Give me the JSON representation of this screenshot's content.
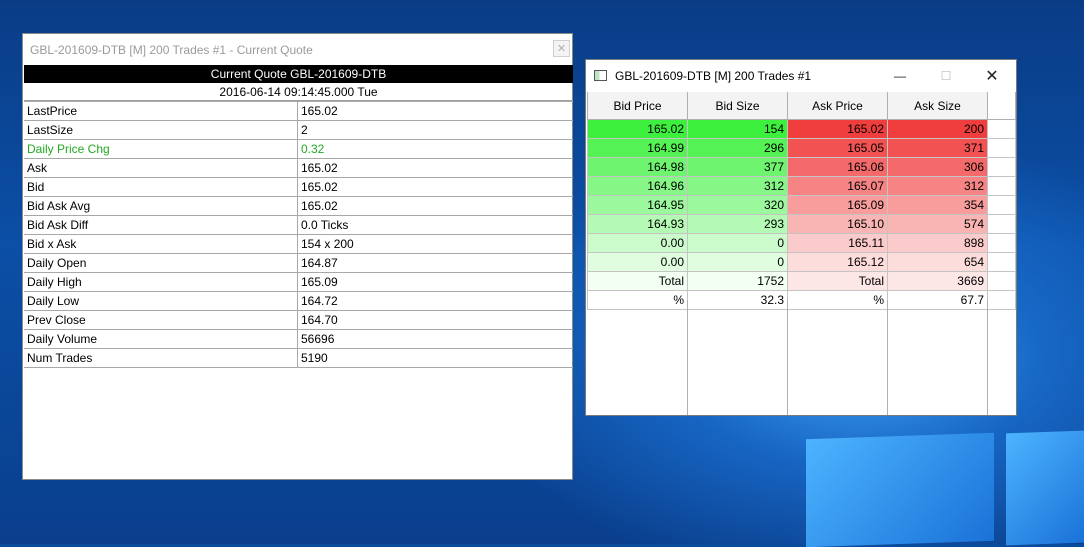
{
  "quote_window": {
    "title": "GBL-201609-DTB [M]  200 Trades  #1 - Current Quote",
    "close_glyph": "✕",
    "header": "Current Quote  GBL-201609-DTB",
    "datetime": "2016-06-14  09:14:45.000 Tue",
    "rows": [
      {
        "key": "LastPrice",
        "value": "165.02"
      },
      {
        "key": "LastSize",
        "value": "2"
      },
      {
        "key": "Daily Price Chg",
        "value": "0.32"
      },
      {
        "key": "Ask",
        "value": "165.02"
      },
      {
        "key": "Bid",
        "value": "165.02"
      },
      {
        "key": "Bid Ask Avg",
        "value": "165.02"
      },
      {
        "key": "Bid Ask Diff",
        "value": "0.0 Ticks"
      },
      {
        "key": "Bid x Ask",
        "value": "154 x 200"
      },
      {
        "key": "Daily Open",
        "value": "164.87"
      },
      {
        "key": "Daily High",
        "value": "165.09"
      },
      {
        "key": "Daily Low",
        "value": "164.72"
      },
      {
        "key": "Prev Close",
        "value": "164.70"
      },
      {
        "key": "Daily Volume",
        "value": "56696"
      },
      {
        "key": "Num Trades",
        "value": "5190"
      }
    ],
    "highlight_color": "#22aa22"
  },
  "dom_window": {
    "title": "GBL-201609-DTB [M]  200 Trades  #1",
    "controls": {
      "minimize": "—",
      "maximize": "☐",
      "close": "✕"
    },
    "columns": [
      "Bid Price",
      "Bid Size",
      "Ask Price",
      "Ask Size"
    ],
    "rows": [
      {
        "bid_price": "165.02",
        "bid_size": "154",
        "ask_price": "165.02",
        "ask_size": "200",
        "bid_color": "#3ef03e",
        "ask_color": "#f03e3e"
      },
      {
        "bid_price": "164.99",
        "bid_size": "296",
        "ask_price": "165.05",
        "ask_size": "371",
        "bid_color": "#55f255",
        "ask_color": "#f25252"
      },
      {
        "bid_price": "164.98",
        "bid_size": "377",
        "ask_price": "165.06",
        "ask_size": "306",
        "bid_color": "#6ef46e",
        "ask_color": "#f46a6a"
      },
      {
        "bid_price": "164.96",
        "bid_size": "312",
        "ask_price": "165.07",
        "ask_size": "312",
        "bid_color": "#86f686",
        "ask_color": "#f68484"
      },
      {
        "bid_price": "164.95",
        "bid_size": "320",
        "ask_price": "165.09",
        "ask_size": "354",
        "bid_color": "#9cf89c",
        "ask_color": "#f89c9c"
      },
      {
        "bid_price": "164.93",
        "bid_size": "293",
        "ask_price": "165.10",
        "ask_size": "574",
        "bid_color": "#b4f9b4",
        "ask_color": "#f9b4b4"
      },
      {
        "bid_price": "0.00",
        "bid_size": "0",
        "ask_price": "165.11",
        "ask_size": "898",
        "bid_color": "#cbfbcb",
        "ask_color": "#fbcaca"
      },
      {
        "bid_price": "0.00",
        "bid_size": "0",
        "ask_price": "165.12",
        "ask_size": "654",
        "bid_color": "#e0fde0",
        "ask_color": "#fddcdc"
      }
    ],
    "total": {
      "bid_label": "Total",
      "bid_value": "1752",
      "ask_label": "Total",
      "ask_value": "3669",
      "bid_color": "#f2fff2",
      "ask_color": "#fde6e6"
    },
    "percent": {
      "bid_label": "%",
      "bid_value": "32.3",
      "ask_label": "%",
      "ask_value": "67.7"
    }
  }
}
